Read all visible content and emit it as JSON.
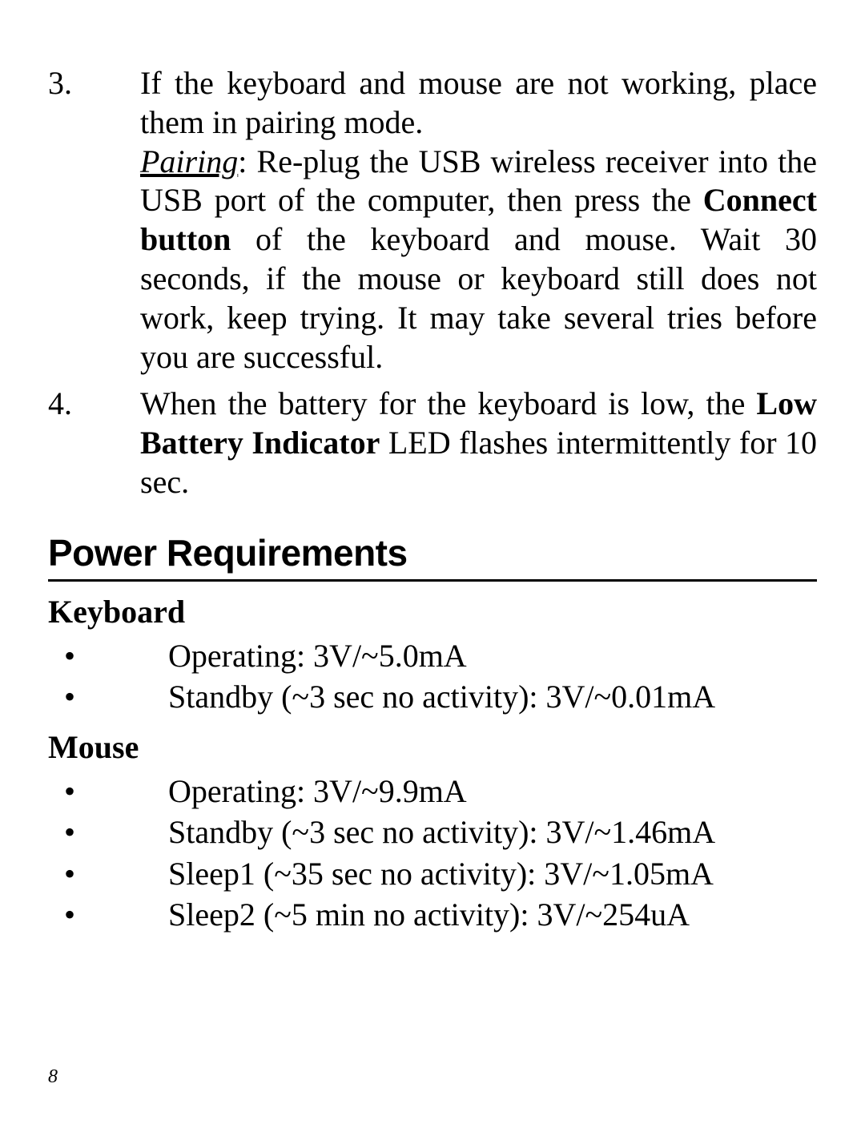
{
  "colors": {
    "text": "#000000",
    "background": "#ffffff",
    "rule": "#000000"
  },
  "typography": {
    "body_font": "Palatino Linotype",
    "heading_font": "Helvetica",
    "body_size_pt": 30,
    "heading_size_pt": 35,
    "subheading_size_pt": 30,
    "pagenum_size_pt": 18
  },
  "list": {
    "items": [
      {
        "num": "3.",
        "line1": "If the keyboard and mouse are not working, place them in pairing mode.",
        "pairing_label": "Pairing",
        "pairing_sep": ": ",
        "pairing_text_a": "Re-plug the USB wireless receiver into the USB port of the computer, then press the ",
        "bold1": "Connect button",
        "pairing_text_b": " of the keyboard and mouse.  Wait 30 seconds, if the mouse or keyboard still does not work, keep trying. It may take several tries before you are successful."
      },
      {
        "num": "4.",
        "text_a": "When the battery for the keyboard is low, the ",
        "bold1": "Low Battery Indicator",
        "text_b": " LED flashes intermittently for 10 sec."
      }
    ]
  },
  "section_title": "Power Requirements",
  "keyboard": {
    "heading": "Keyboard",
    "items": [
      "Operating:  3V/~5.0mA",
      "Standby (~3 sec no activity): 3V/~0.01mA"
    ]
  },
  "mouse": {
    "heading": "Mouse",
    "items": [
      "Operating:  3V/~9.9mA",
      "Standby (~3 sec no activity): 3V/~1.46mA",
      "Sleep1 (~35 sec no activity): 3V/~1.05mA",
      "Sleep2 (~5 min no activity): 3V/~254uA"
    ]
  },
  "bullet_glyph": "•",
  "page_number": "8"
}
